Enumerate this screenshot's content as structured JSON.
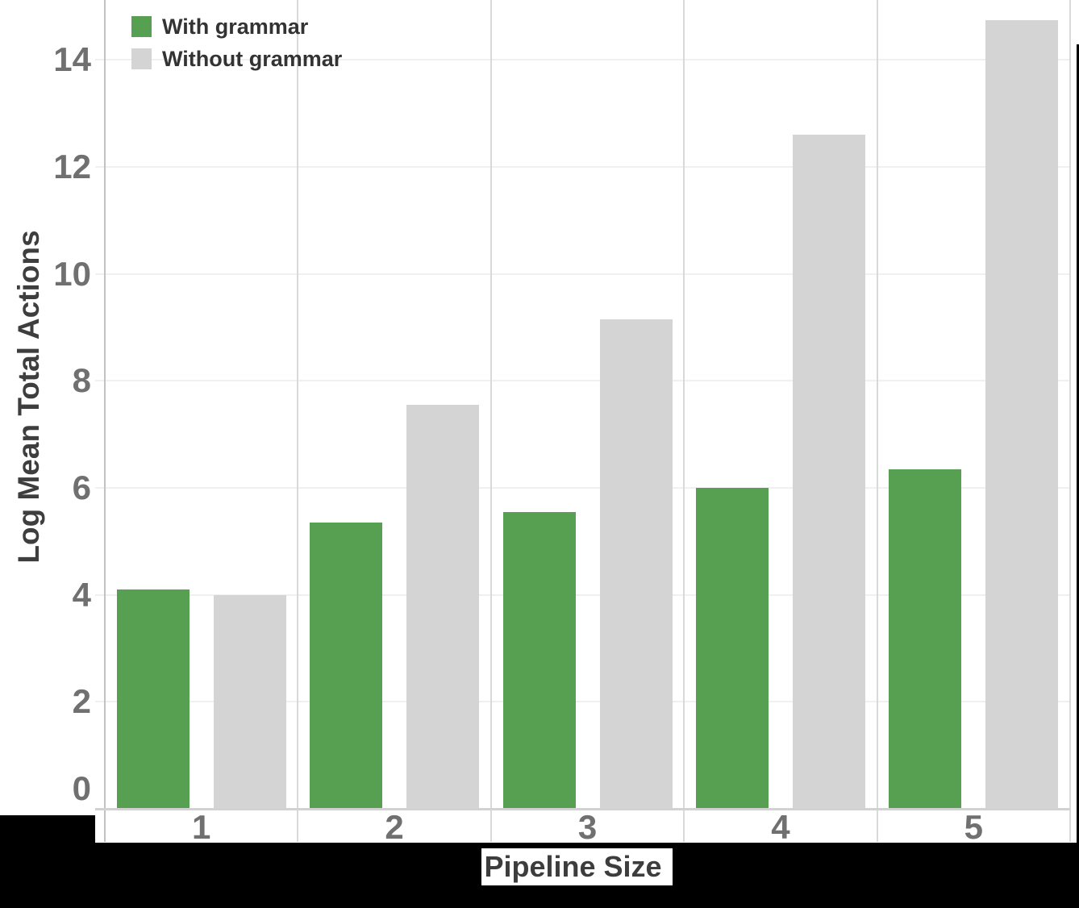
{
  "chart_data": {
    "type": "bar",
    "title": "",
    "xlabel": "Pipeline Size",
    "ylabel": "Log Mean Total Actions",
    "categories": [
      "1",
      "2",
      "3",
      "4",
      "5"
    ],
    "series": [
      {
        "name": "With grammar",
        "color": "#57a052",
        "values": [
          4.1,
          5.35,
          5.55,
          6.0,
          6.35
        ]
      },
      {
        "name": "Without grammar",
        "color": "#d4d4d4",
        "values": [
          4.0,
          7.55,
          9.15,
          12.6,
          14.75
        ]
      }
    ],
    "y_ticks": [
      0,
      2,
      4,
      6,
      8,
      10,
      12,
      14
    ],
    "ylim": [
      0,
      15.1
    ],
    "grid": true,
    "legend_position": "top-left"
  },
  "colors": {
    "bar_green": "#57a052",
    "bar_gray": "#d4d4d4",
    "tick_label": "#707070",
    "axis_title": "#3e3e3e",
    "legend_text": "#333333",
    "gridline": "#f0f0f0",
    "separator": "#d9d9d9",
    "mask": "#000000",
    "background": "#ffffff"
  }
}
